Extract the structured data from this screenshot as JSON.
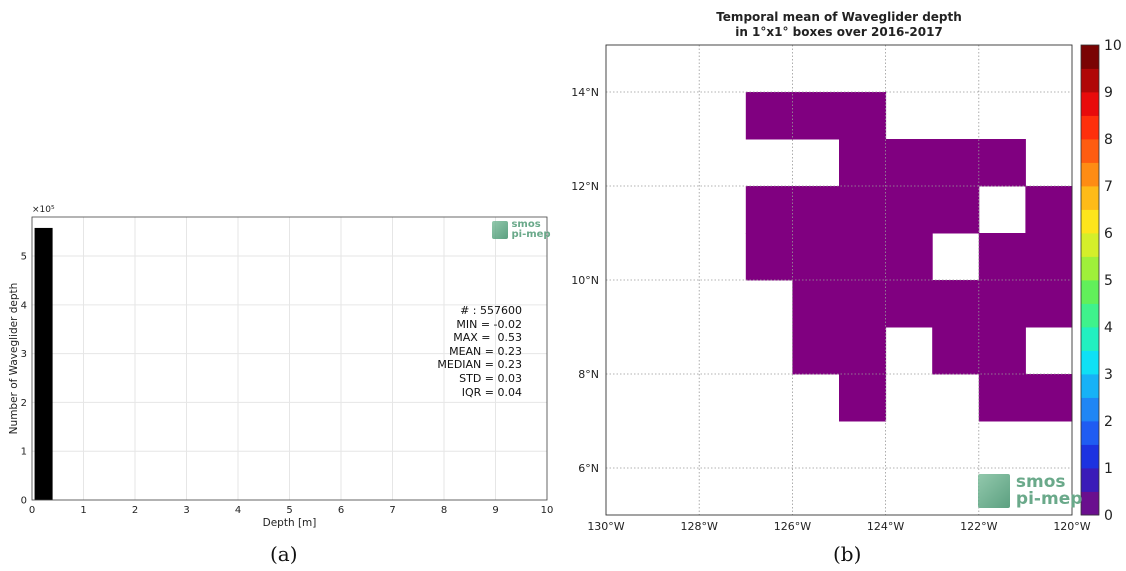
{
  "panels": {
    "a_label": "(a)",
    "b_label": "(b)"
  },
  "logo": {
    "line1": "smos",
    "line2": "pi-mep",
    "icon": "smos-pi-mep-logo-icon"
  },
  "stats": {
    "lines": [
      "# : 557600",
      "MIN = -0.02",
      "MAX =  0.53",
      "MEAN = 0.23",
      "MEDIAN = 0.23",
      "STD = 0.03",
      "IQR = 0.04"
    ]
  },
  "colors": {
    "bar": "#000000",
    "fill": "#800080",
    "grid": "#e6e6e6",
    "map_grid": "#999999",
    "colorbar": [
      "#6a0f8e",
      "#3a1bb8",
      "#1c32e0",
      "#1f5cf2",
      "#1f86f5",
      "#17b2f6",
      "#0fe0f5",
      "#22f0c0",
      "#3ff28c",
      "#61f05a",
      "#9ff03a",
      "#d4ef2a",
      "#fde51c",
      "#ffbb18",
      "#ff8c14",
      "#ff5c10",
      "#ff300c",
      "#e80b0b",
      "#b00808",
      "#7a0404"
    ]
  },
  "chart_data": [
    {
      "type": "bar",
      "title": "",
      "xlabel": "Depth [m]",
      "ylabel": "Number of Waveglider depth",
      "y_exponent_label": "×10⁵",
      "xlim": [
        0,
        10
      ],
      "ylim": [
        0,
        5.8
      ],
      "xticks": [
        "0",
        "1",
        "2",
        "3",
        "4",
        "5",
        "6",
        "7",
        "8",
        "9",
        "10"
      ],
      "yticks": [
        "0",
        "1",
        "2",
        "3",
        "4",
        "5"
      ],
      "bars": [
        {
          "x0": 0.05,
          "x1": 0.4,
          "value": 5.576
        }
      ],
      "grid": true
    },
    {
      "type": "heatmap",
      "title": [
        "Temporal mean of Waveglider depth",
        "in 1°x1° boxes over 2016-2017"
      ],
      "xlim": [
        -130,
        -120
      ],
      "ylim": [
        5,
        15
      ],
      "xticks": [
        {
          "v": -130,
          "label": "130°W"
        },
        {
          "v": -128,
          "label": "128°W"
        },
        {
          "v": -126,
          "label": "126°W"
        },
        {
          "v": -124,
          "label": "124°W"
        },
        {
          "v": -122,
          "label": "122°W"
        },
        {
          "v": -120,
          "label": "120°W"
        }
      ],
      "yticks": [
        {
          "v": 6,
          "label": "6°N"
        },
        {
          "v": 8,
          "label": "8°N"
        },
        {
          "v": 10,
          "label": "10°N"
        },
        {
          "v": 12,
          "label": "12°N"
        },
        {
          "v": 14,
          "label": "14°N"
        }
      ],
      "cells": [
        [
          -127,
          13
        ],
        [
          -126,
          13
        ],
        [
          -125,
          13
        ],
        [
          -125,
          12
        ],
        [
          -124,
          12
        ],
        [
          -123,
          12
        ],
        [
          -122,
          12
        ],
        [
          -127,
          11
        ],
        [
          -126,
          11
        ],
        [
          -125,
          11
        ],
        [
          -124,
          11
        ],
        [
          -123,
          11
        ],
        [
          -121,
          11
        ],
        [
          -127,
          10
        ],
        [
          -126,
          10
        ],
        [
          -125,
          10
        ],
        [
          -124,
          10
        ],
        [
          -122,
          10
        ],
        [
          -121,
          10
        ],
        [
          -126,
          9
        ],
        [
          -125,
          9
        ],
        [
          -124,
          9
        ],
        [
          -123,
          9
        ],
        [
          -122,
          9
        ],
        [
          -121,
          9
        ],
        [
          -126,
          8
        ],
        [
          -125,
          8
        ],
        [
          -123,
          8
        ],
        [
          -122,
          8
        ],
        [
          -125,
          7
        ],
        [
          -122,
          7
        ],
        [
          -121,
          7
        ]
      ],
      "cell_value": 0.23,
      "colorbar": {
        "min": 0,
        "max": 10,
        "ticks": [
          "0",
          "1",
          "2",
          "3",
          "4",
          "5",
          "6",
          "7",
          "8",
          "9",
          "10"
        ]
      },
      "grid": true
    }
  ]
}
